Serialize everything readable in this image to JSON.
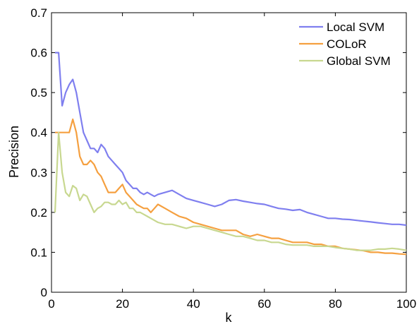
{
  "chart_data": {
    "type": "line",
    "xlabel": "k",
    "ylabel": "Precision",
    "xlim": [
      0,
      100
    ],
    "ylim": [
      0,
      0.7
    ],
    "xticks": [
      "0",
      "20",
      "40",
      "60",
      "80",
      "100"
    ],
    "yticks": [
      "0",
      "0.1",
      "0.2",
      "0.3",
      "0.4",
      "0.5",
      "0.6",
      "0.7"
    ],
    "grid": false,
    "legend_position": "top-right",
    "series": [
      {
        "name": "Local SVM",
        "color": "#7f7fef",
        "points": [
          [
            1,
            0.6
          ],
          [
            2,
            0.6
          ],
          [
            3,
            0.467
          ],
          [
            4,
            0.5
          ],
          [
            5,
            0.52
          ],
          [
            6,
            0.533
          ],
          [
            7,
            0.5
          ],
          [
            8,
            0.45
          ],
          [
            9,
            0.4
          ],
          [
            10,
            0.38
          ],
          [
            11,
            0.36
          ],
          [
            12,
            0.36
          ],
          [
            13,
            0.35
          ],
          [
            14,
            0.37
          ],
          [
            15,
            0.36
          ],
          [
            16,
            0.34
          ],
          [
            17,
            0.33
          ],
          [
            18,
            0.32
          ],
          [
            19,
            0.31
          ],
          [
            20,
            0.3
          ],
          [
            21,
            0.28
          ],
          [
            22,
            0.27
          ],
          [
            23,
            0.26
          ],
          [
            24,
            0.26
          ],
          [
            25,
            0.25
          ],
          [
            26,
            0.245
          ],
          [
            27,
            0.25
          ],
          [
            28,
            0.245
          ],
          [
            29,
            0.24
          ],
          [
            30,
            0.245
          ],
          [
            32,
            0.25
          ],
          [
            34,
            0.255
          ],
          [
            36,
            0.245
          ],
          [
            38,
            0.235
          ],
          [
            40,
            0.23
          ],
          [
            42,
            0.225
          ],
          [
            44,
            0.22
          ],
          [
            46,
            0.215
          ],
          [
            48,
            0.22
          ],
          [
            50,
            0.23
          ],
          [
            52,
            0.232
          ],
          [
            54,
            0.228
          ],
          [
            56,
            0.225
          ],
          [
            58,
            0.222
          ],
          [
            60,
            0.22
          ],
          [
            62,
            0.215
          ],
          [
            64,
            0.21
          ],
          [
            66,
            0.208
          ],
          [
            68,
            0.205
          ],
          [
            70,
            0.207
          ],
          [
            72,
            0.2
          ],
          [
            74,
            0.195
          ],
          [
            76,
            0.19
          ],
          [
            78,
            0.185
          ],
          [
            80,
            0.185
          ],
          [
            82,
            0.183
          ],
          [
            84,
            0.182
          ],
          [
            86,
            0.18
          ],
          [
            88,
            0.178
          ],
          [
            90,
            0.176
          ],
          [
            92,
            0.174
          ],
          [
            94,
            0.172
          ],
          [
            96,
            0.17
          ],
          [
            98,
            0.17
          ],
          [
            100,
            0.168
          ]
        ]
      },
      {
        "name": "COLoR",
        "color": "#f5a040",
        "points": [
          [
            1,
            0.4
          ],
          [
            2,
            0.4
          ],
          [
            3,
            0.4
          ],
          [
            4,
            0.4
          ],
          [
            5,
            0.4
          ],
          [
            6,
            0.433
          ],
          [
            7,
            0.4
          ],
          [
            8,
            0.34
          ],
          [
            9,
            0.32
          ],
          [
            10,
            0.32
          ],
          [
            11,
            0.33
          ],
          [
            12,
            0.32
          ],
          [
            13,
            0.3
          ],
          [
            14,
            0.29
          ],
          [
            15,
            0.27
          ],
          [
            16,
            0.25
          ],
          [
            17,
            0.25
          ],
          [
            18,
            0.25
          ],
          [
            19,
            0.26
          ],
          [
            20,
            0.27
          ],
          [
            21,
            0.25
          ],
          [
            22,
            0.24
          ],
          [
            23,
            0.23
          ],
          [
            24,
            0.22
          ],
          [
            25,
            0.215
          ],
          [
            26,
            0.21
          ],
          [
            27,
            0.21
          ],
          [
            28,
            0.2
          ],
          [
            29,
            0.21
          ],
          [
            30,
            0.22
          ],
          [
            32,
            0.21
          ],
          [
            34,
            0.2
          ],
          [
            36,
            0.19
          ],
          [
            38,
            0.185
          ],
          [
            40,
            0.175
          ],
          [
            42,
            0.17
          ],
          [
            44,
            0.165
          ],
          [
            46,
            0.16
          ],
          [
            48,
            0.155
          ],
          [
            50,
            0.155
          ],
          [
            52,
            0.155
          ],
          [
            54,
            0.145
          ],
          [
            56,
            0.14
          ],
          [
            58,
            0.145
          ],
          [
            60,
            0.14
          ],
          [
            62,
            0.135
          ],
          [
            64,
            0.135
          ],
          [
            66,
            0.13
          ],
          [
            68,
            0.125
          ],
          [
            70,
            0.125
          ],
          [
            72,
            0.125
          ],
          [
            74,
            0.12
          ],
          [
            76,
            0.12
          ],
          [
            78,
            0.115
          ],
          [
            80,
            0.115
          ],
          [
            82,
            0.11
          ],
          [
            84,
            0.108
          ],
          [
            86,
            0.106
          ],
          [
            88,
            0.104
          ],
          [
            90,
            0.1
          ],
          [
            92,
            0.1
          ],
          [
            94,
            0.098
          ],
          [
            96,
            0.098
          ],
          [
            98,
            0.096
          ],
          [
            100,
            0.095
          ]
        ]
      },
      {
        "name": "Global SVM",
        "color": "#c8d890",
        "points": [
          [
            1,
            0.2
          ],
          [
            2,
            0.4
          ],
          [
            3,
            0.3
          ],
          [
            4,
            0.25
          ],
          [
            5,
            0.24
          ],
          [
            6,
            0.267
          ],
          [
            7,
            0.26
          ],
          [
            8,
            0.23
          ],
          [
            9,
            0.245
          ],
          [
            10,
            0.24
          ],
          [
            11,
            0.22
          ],
          [
            12,
            0.2
          ],
          [
            13,
            0.21
          ],
          [
            14,
            0.215
          ],
          [
            15,
            0.225
          ],
          [
            16,
            0.225
          ],
          [
            17,
            0.22
          ],
          [
            18,
            0.22
          ],
          [
            19,
            0.23
          ],
          [
            20,
            0.22
          ],
          [
            21,
            0.225
          ],
          [
            22,
            0.21
          ],
          [
            23,
            0.21
          ],
          [
            24,
            0.2
          ],
          [
            25,
            0.2
          ],
          [
            26,
            0.195
          ],
          [
            27,
            0.19
          ],
          [
            28,
            0.185
          ],
          [
            29,
            0.18
          ],
          [
            30,
            0.175
          ],
          [
            32,
            0.17
          ],
          [
            34,
            0.17
          ],
          [
            36,
            0.165
          ],
          [
            38,
            0.16
          ],
          [
            40,
            0.165
          ],
          [
            42,
            0.165
          ],
          [
            44,
            0.16
          ],
          [
            46,
            0.155
          ],
          [
            48,
            0.15
          ],
          [
            50,
            0.145
          ],
          [
            52,
            0.14
          ],
          [
            54,
            0.14
          ],
          [
            56,
            0.135
          ],
          [
            58,
            0.13
          ],
          [
            60,
            0.13
          ],
          [
            62,
            0.125
          ],
          [
            64,
            0.125
          ],
          [
            66,
            0.12
          ],
          [
            68,
            0.118
          ],
          [
            70,
            0.118
          ],
          [
            72,
            0.118
          ],
          [
            74,
            0.115
          ],
          [
            76,
            0.115
          ],
          [
            78,
            0.115
          ],
          [
            80,
            0.112
          ],
          [
            82,
            0.11
          ],
          [
            84,
            0.108
          ],
          [
            86,
            0.105
          ],
          [
            88,
            0.105
          ],
          [
            90,
            0.105
          ],
          [
            92,
            0.108
          ],
          [
            94,
            0.108
          ],
          [
            96,
            0.11
          ],
          [
            98,
            0.108
          ],
          [
            100,
            0.105
          ]
        ]
      }
    ]
  }
}
